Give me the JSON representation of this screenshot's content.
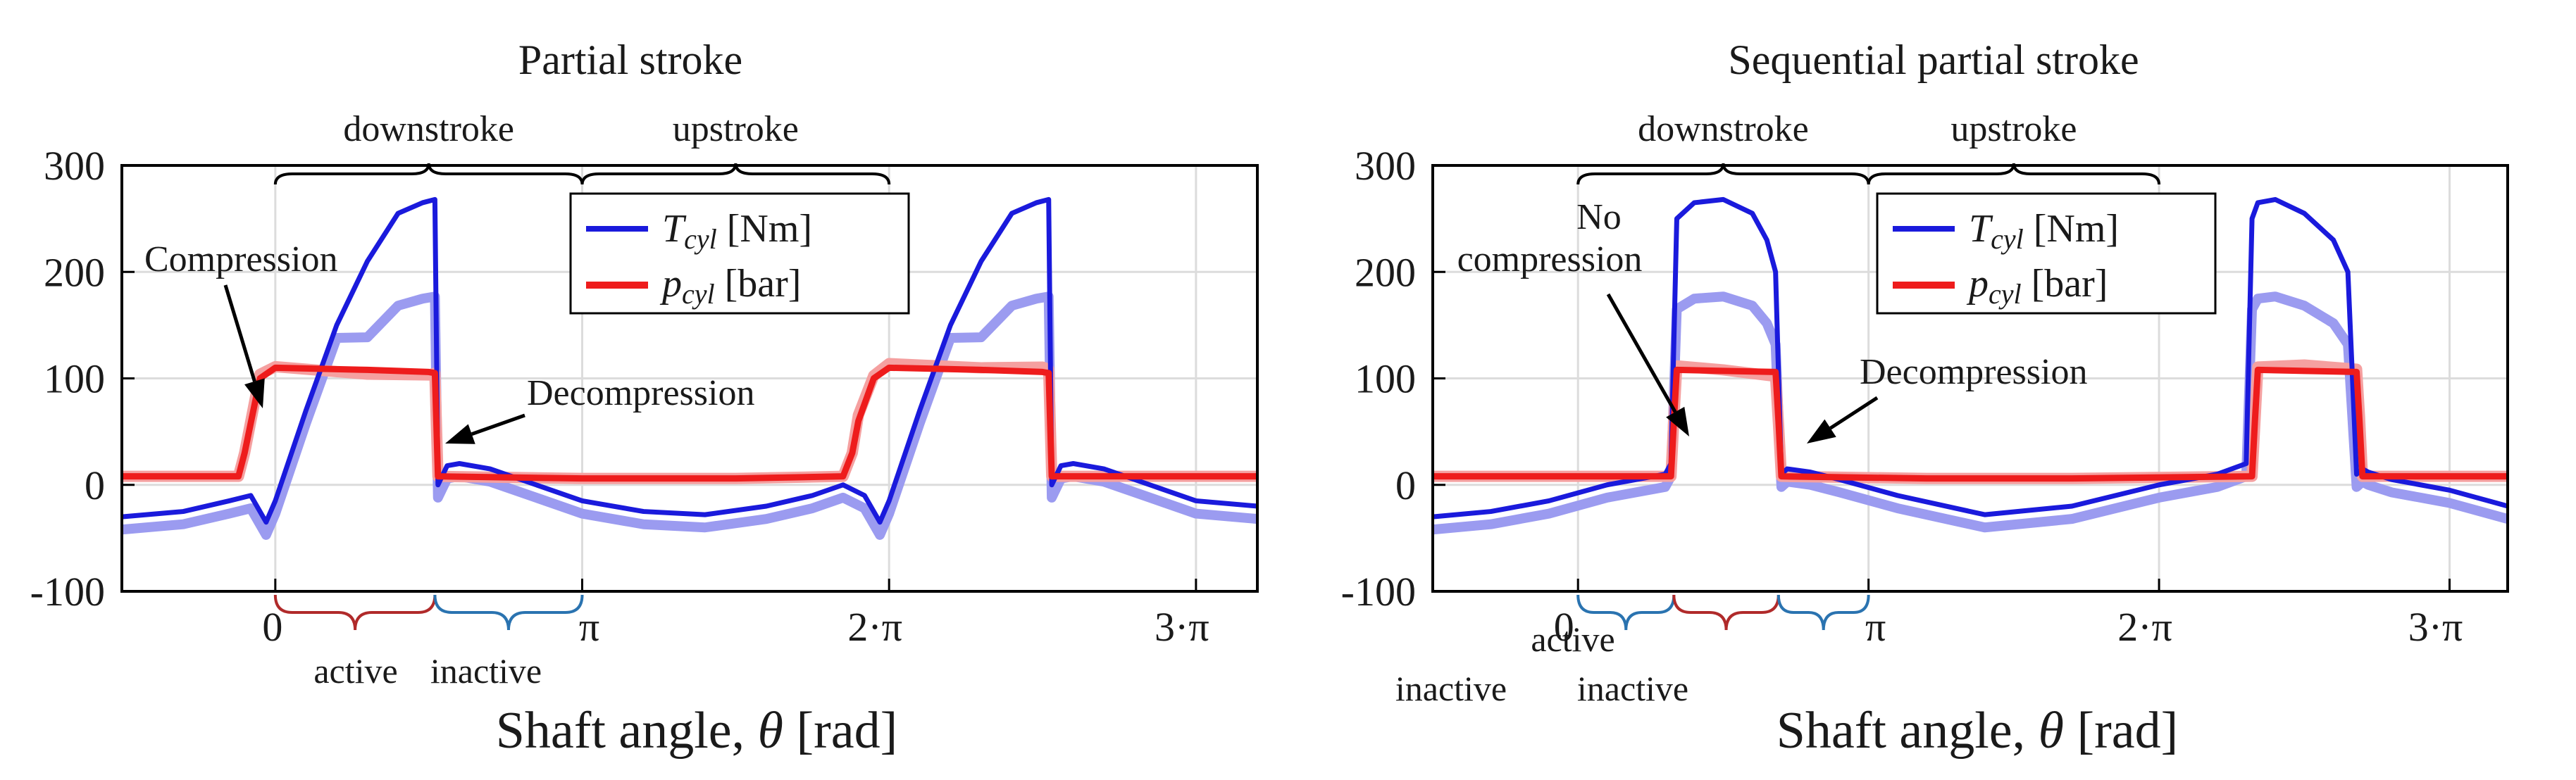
{
  "colors": {
    "torque": "#1a1adc",
    "torque_meas": "#9b9bf0",
    "pressure": "#ee1c1c",
    "pressure_meas": "#f5a0a0",
    "grid": "#dcdcdc",
    "active_brace": "#b02a2a",
    "inactive_brace": "#2a73b0"
  },
  "labels": {
    "xlabel_prefix": "Shaft angle, ",
    "xlabel_symbol": "θ",
    "xlabel_unit": " [rad]",
    "downstroke": "downstroke",
    "upstroke": "upstroke",
    "active": "active",
    "inactive": "inactive",
    "decompression": "Decompression",
    "compression": "Compression",
    "no_compression_line1": "No",
    "no_compression_line2": "compression",
    "legend_T_symbol": "T",
    "legend_T_sub": "cyl",
    "legend_T_unit": " [Nm]",
    "legend_p_symbol": "p",
    "legend_p_sub": "cyl",
    "legend_p_unit": " [bar]"
  },
  "chart_data": [
    {
      "type": "line",
      "title": "Partial stroke",
      "xlabel": "Shaft angle, θ [rad]",
      "ylabel": "",
      "xlim": [
        -0.5,
        3.2
      ],
      "ylim": [
        -100,
        300
      ],
      "xticks": [
        0,
        1,
        2,
        3
      ],
      "xtick_labels": [
        "0",
        "π",
        "2·π",
        "3·π"
      ],
      "yticks": [
        -100,
        0,
        100,
        200,
        300
      ],
      "ytick_labels": [
        "-100",
        "0",
        "100",
        "200",
        "300"
      ],
      "grid": true,
      "legend": [
        "Tcyl [Nm]",
        "pcyl [bar]"
      ],
      "legend_position": "top-center",
      "series": [
        {
          "name": "Tcyl [Nm]",
          "x": [
            -0.5,
            -0.3,
            -0.15,
            -0.08,
            -0.03,
            0.0,
            0.1,
            0.2,
            0.3,
            0.4,
            0.48,
            0.52,
            0.53,
            0.56,
            0.6,
            0.7,
            0.85,
            1.0,
            1.2,
            1.4,
            1.6,
            1.75,
            1.85,
            1.92,
            1.97,
            2.0,
            2.1,
            2.2,
            2.3,
            2.4,
            2.48,
            2.52,
            2.53,
            2.56,
            2.6,
            2.7,
            2.85,
            3.0,
            3.2
          ],
          "y": [
            -30,
            -25,
            -15,
            -10,
            -35,
            -15,
            70,
            150,
            210,
            255,
            265,
            268,
            0,
            18,
            20,
            15,
            0,
            -15,
            -25,
            -28,
            -20,
            -10,
            0,
            -10,
            -35,
            -15,
            70,
            150,
            210,
            255,
            265,
            268,
            0,
            18,
            20,
            15,
            0,
            -15,
            -20
          ]
        },
        {
          "name": "pcyl [bar]",
          "x": [
            -0.5,
            -0.12,
            -0.1,
            -0.05,
            0.0,
            0.3,
            0.5,
            0.52,
            0.53,
            1.0,
            1.5,
            1.85,
            1.88,
            1.9,
            1.95,
            2.0,
            2.3,
            2.5,
            2.52,
            2.53,
            3.2
          ],
          "y": [
            8,
            8,
            30,
            100,
            110,
            108,
            106,
            105,
            8,
            6,
            6,
            8,
            30,
            60,
            100,
            110,
            108,
            106,
            105,
            8,
            8
          ]
        }
      ]
    },
    {
      "type": "line",
      "title": "Sequential partial stroke",
      "xlabel": "Shaft angle, θ [rad]",
      "ylabel": "",
      "xlim": [
        -0.5,
        3.2
      ],
      "ylim": [
        -100,
        300
      ],
      "xticks": [
        0,
        1,
        2,
        3
      ],
      "xtick_labels": [
        "0",
        "π",
        "2·π",
        "3·π"
      ],
      "yticks": [
        -100,
        0,
        100,
        200,
        300
      ],
      "ytick_labels": [
        "-100",
        "0",
        "100",
        "200",
        "300"
      ],
      "grid": true,
      "legend": [
        "Tcyl [Nm]",
        "pcyl [bar]"
      ],
      "legend_position": "top-center",
      "series": [
        {
          "name": "Tcyl [Nm]",
          "x": [
            -0.5,
            -0.3,
            -0.1,
            0.1,
            0.3,
            0.32,
            0.34,
            0.4,
            0.5,
            0.6,
            0.65,
            0.68,
            0.7,
            0.72,
            0.8,
            0.9,
            1.1,
            1.4,
            1.7,
            2.0,
            2.2,
            2.3,
            2.32,
            2.34,
            2.4,
            2.5,
            2.6,
            2.65,
            2.68,
            2.7,
            2.72,
            2.8,
            2.9,
            3.0,
            3.2
          ],
          "y": [
            -30,
            -25,
            -15,
            0,
            10,
            20,
            250,
            265,
            268,
            255,
            230,
            200,
            10,
            15,
            12,
            5,
            -10,
            -28,
            -20,
            0,
            10,
            20,
            250,
            265,
            268,
            255,
            230,
            200,
            10,
            15,
            12,
            5,
            0,
            -5,
            -20
          ]
        },
        {
          "name": "pcyl [bar]",
          "x": [
            -0.5,
            0.32,
            0.33,
            0.34,
            0.5,
            0.68,
            0.69,
            0.7,
            1.2,
            1.7,
            2.32,
            2.33,
            2.34,
            2.5,
            2.68,
            2.69,
            2.7,
            3.2
          ],
          "y": [
            8,
            8,
            60,
            108,
            107,
            106,
            60,
            8,
            6,
            6,
            8,
            60,
            108,
            107,
            106,
            60,
            8,
            8
          ]
        }
      ]
    }
  ]
}
